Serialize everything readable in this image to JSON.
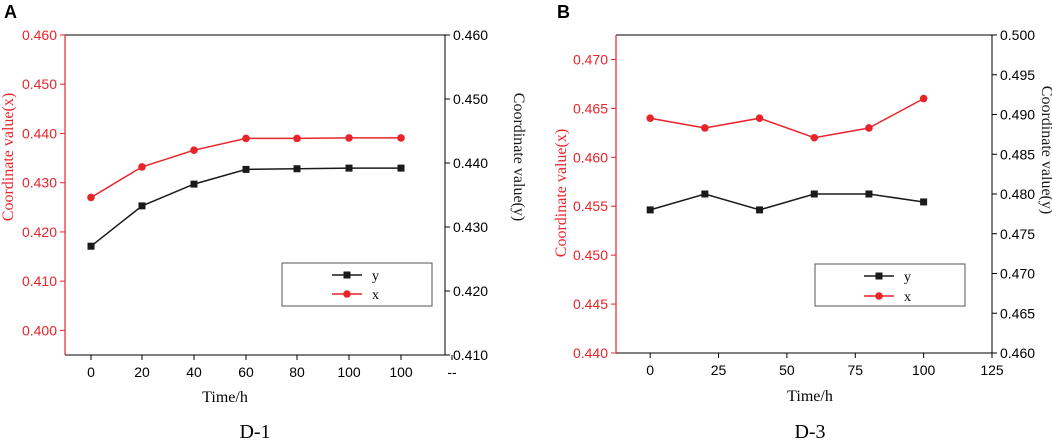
{
  "colors": {
    "x_series": "#e8242b",
    "y_series": "#1a1a1a",
    "axis": "#000000"
  },
  "chart_data": [
    {
      "panel_label": "A",
      "caption": "D-1",
      "type": "line",
      "xlabel": "Time/h",
      "ylabel_left": "Coordinate value(x)",
      "ylabel_right": "Coordinate value(y)",
      "x_tick_labels": [
        "0",
        "20",
        "40",
        "60",
        "80",
        "100",
        "100",
        "--"
      ],
      "ylim_left": [
        0.395,
        0.46
      ],
      "ylim_right": [
        0.41,
        0.46
      ],
      "y_ticks_left": [
        "0.400",
        "0.410",
        "0.420",
        "0.430",
        "0.440",
        "0.450",
        "0.460"
      ],
      "y_ticks_right": [
        "0.410",
        "0.420",
        "0.430",
        "0.440",
        "0.450",
        "0.460"
      ],
      "legend": [
        "y",
        "x"
      ],
      "series": [
        {
          "name": "y",
          "axis": "right",
          "marker": "square",
          "values": [
            0.427,
            0.4333,
            0.4367,
            0.439,
            0.4391,
            0.4392,
            0.4392
          ]
        },
        {
          "name": "x",
          "axis": "left",
          "marker": "circle",
          "values": [
            0.427,
            0.4332,
            0.4366,
            0.439,
            0.439,
            0.4391,
            0.4391
          ]
        }
      ]
    },
    {
      "panel_label": "B",
      "caption": "D-3",
      "type": "line",
      "xlabel": "Time/h",
      "ylabel_left": "Coordinate value(x)",
      "ylabel_right": "Coordinate value(y)",
      "x": [
        0,
        20,
        40,
        60,
        80,
        100
      ],
      "x_ticks": [
        "0",
        "25",
        "50",
        "75",
        "100",
        "125"
      ],
      "xlim": [
        -12.5,
        125
      ],
      "ylim_left": [
        0.44,
        0.4725
      ],
      "ylim_right": [
        0.46,
        0.5
      ],
      "y_ticks_left": [
        "0.440",
        "0.445",
        "0.450",
        "0.455",
        "0.460",
        "0.465",
        "0.470"
      ],
      "y_ticks_right": [
        "0.460",
        "0.465",
        "0.470",
        "0.475",
        "0.480",
        "0.485",
        "0.490",
        "0.495",
        "0.500"
      ],
      "legend": [
        "y",
        "x"
      ],
      "series": [
        {
          "name": "y",
          "axis": "right",
          "marker": "square",
          "values": [
            0.478,
            0.48,
            0.478,
            0.48,
            0.48,
            0.479
          ]
        },
        {
          "name": "x",
          "axis": "left",
          "marker": "circle",
          "values": [
            0.464,
            0.463,
            0.464,
            0.462,
            0.463,
            0.466
          ]
        }
      ]
    }
  ]
}
